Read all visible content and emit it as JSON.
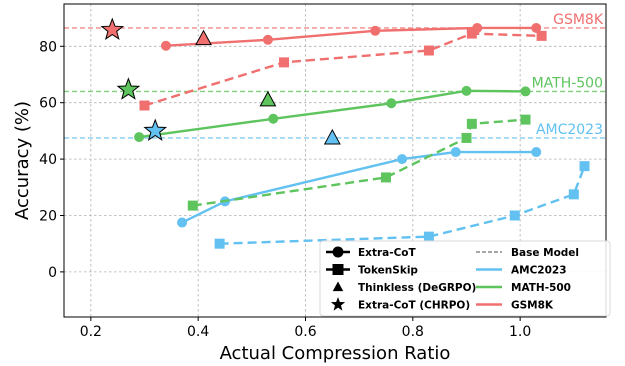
{
  "chart_data": {
    "type": "line",
    "xlabel": "Actual Compression Ratio",
    "ylabel": "Accuracy (%)",
    "xlim": [
      0.15,
      1.16
    ],
    "ylim": [
      -16,
      95
    ],
    "x_ticks": [
      "0.2",
      "0.4",
      "0.6",
      "0.8",
      "1.0"
    ],
    "x_tick_values": [
      0.2,
      0.4,
      0.6,
      0.8,
      1.0
    ],
    "y_ticks": [
      "0",
      "20",
      "40",
      "60",
      "80"
    ],
    "y_tick_values": [
      0,
      20,
      40,
      60,
      80
    ],
    "grid": true,
    "legend_placement": "lower-center",
    "colors": {
      "GSM8K": "#f07070",
      "MATH-500": "#5ec45e",
      "AMC2023": "#62c1f0",
      "base": "#888888"
    },
    "baselines": [
      {
        "name": "GSM8K",
        "y": 86.5
      },
      {
        "name": "MATH-500",
        "y": 64
      },
      {
        "name": "AMC2023",
        "y": 47.5
      }
    ],
    "series": [
      {
        "method": "Extra-CoT",
        "dataset": "GSM8K",
        "marker": "circle",
        "style": "solid",
        "x": [
          0.34,
          0.53,
          0.73,
          0.92,
          1.03
        ],
        "y": [
          80.2,
          82.3,
          85.5,
          86.5,
          86.5
        ]
      },
      {
        "method": "Extra-CoT",
        "dataset": "MATH-500",
        "marker": "circle",
        "style": "solid",
        "x": [
          0.29,
          0.54,
          0.76,
          0.9,
          1.01
        ],
        "y": [
          47.8,
          54.3,
          59.8,
          64.2,
          64.0
        ]
      },
      {
        "method": "Extra-CoT",
        "dataset": "AMC2023",
        "marker": "circle",
        "style": "solid",
        "x": [
          0.37,
          0.45,
          0.78,
          0.88,
          1.03
        ],
        "y": [
          17.5,
          25.0,
          40.0,
          42.5,
          42.5
        ]
      },
      {
        "method": "TokenSkip",
        "dataset": "GSM8K",
        "marker": "square",
        "style": "dashed",
        "x": [
          0.3,
          0.56,
          0.83,
          0.91,
          1.04
        ],
        "y": [
          59.0,
          74.3,
          78.5,
          84.5,
          83.7
        ]
      },
      {
        "method": "TokenSkip",
        "dataset": "MATH-500",
        "marker": "square",
        "style": "dashed",
        "x": [
          0.39,
          0.75,
          0.9,
          0.91,
          1.01
        ],
        "y": [
          23.5,
          33.5,
          47.5,
          52.5,
          54.0
        ]
      },
      {
        "method": "TokenSkip",
        "dataset": "AMC2023",
        "marker": "square",
        "style": "dashed",
        "x": [
          0.44,
          0.83,
          0.99,
          1.1,
          1.12
        ],
        "y": [
          10.0,
          12.5,
          20.0,
          27.5,
          37.5
        ]
      }
    ],
    "points": [
      {
        "method": "Thinkless (DeGRPO)",
        "dataset": "GSM8K",
        "marker": "triangle",
        "x": 0.41,
        "y": 82.7
      },
      {
        "method": "Thinkless (DeGRPO)",
        "dataset": "MATH-500",
        "marker": "triangle",
        "x": 0.53,
        "y": 61.0
      },
      {
        "method": "Thinkless (DeGRPO)",
        "dataset": "AMC2023",
        "marker": "triangle",
        "x": 0.65,
        "y": 47.5
      },
      {
        "method": "Extra-CoT (CHRPO)",
        "dataset": "GSM8K",
        "marker": "star",
        "x": 0.24,
        "y": 85.8
      },
      {
        "method": "Extra-CoT (CHRPO)",
        "dataset": "MATH-500",
        "marker": "star",
        "x": 0.27,
        "y": 64.6
      },
      {
        "method": "Extra-CoT (CHRPO)",
        "dataset": "AMC2023",
        "marker": "star",
        "x": 0.32,
        "y": 50.0
      }
    ],
    "legend": {
      "col1": [
        {
          "label": "Extra-CoT",
          "marker": "circle"
        },
        {
          "label": "TokenSkip",
          "marker": "square"
        },
        {
          "label": "Thinkless (DeGRPO)",
          "marker": "triangle"
        },
        {
          "label": "Extra-CoT (CHRPO)",
          "marker": "star"
        }
      ],
      "col2": [
        {
          "label": "Base Model",
          "kind": "base"
        },
        {
          "label": "AMC2023",
          "kind": "AMC2023"
        },
        {
          "label": "MATH-500",
          "kind": "MATH-500"
        },
        {
          "label": "GSM8K",
          "kind": "GSM8K"
        }
      ]
    }
  }
}
